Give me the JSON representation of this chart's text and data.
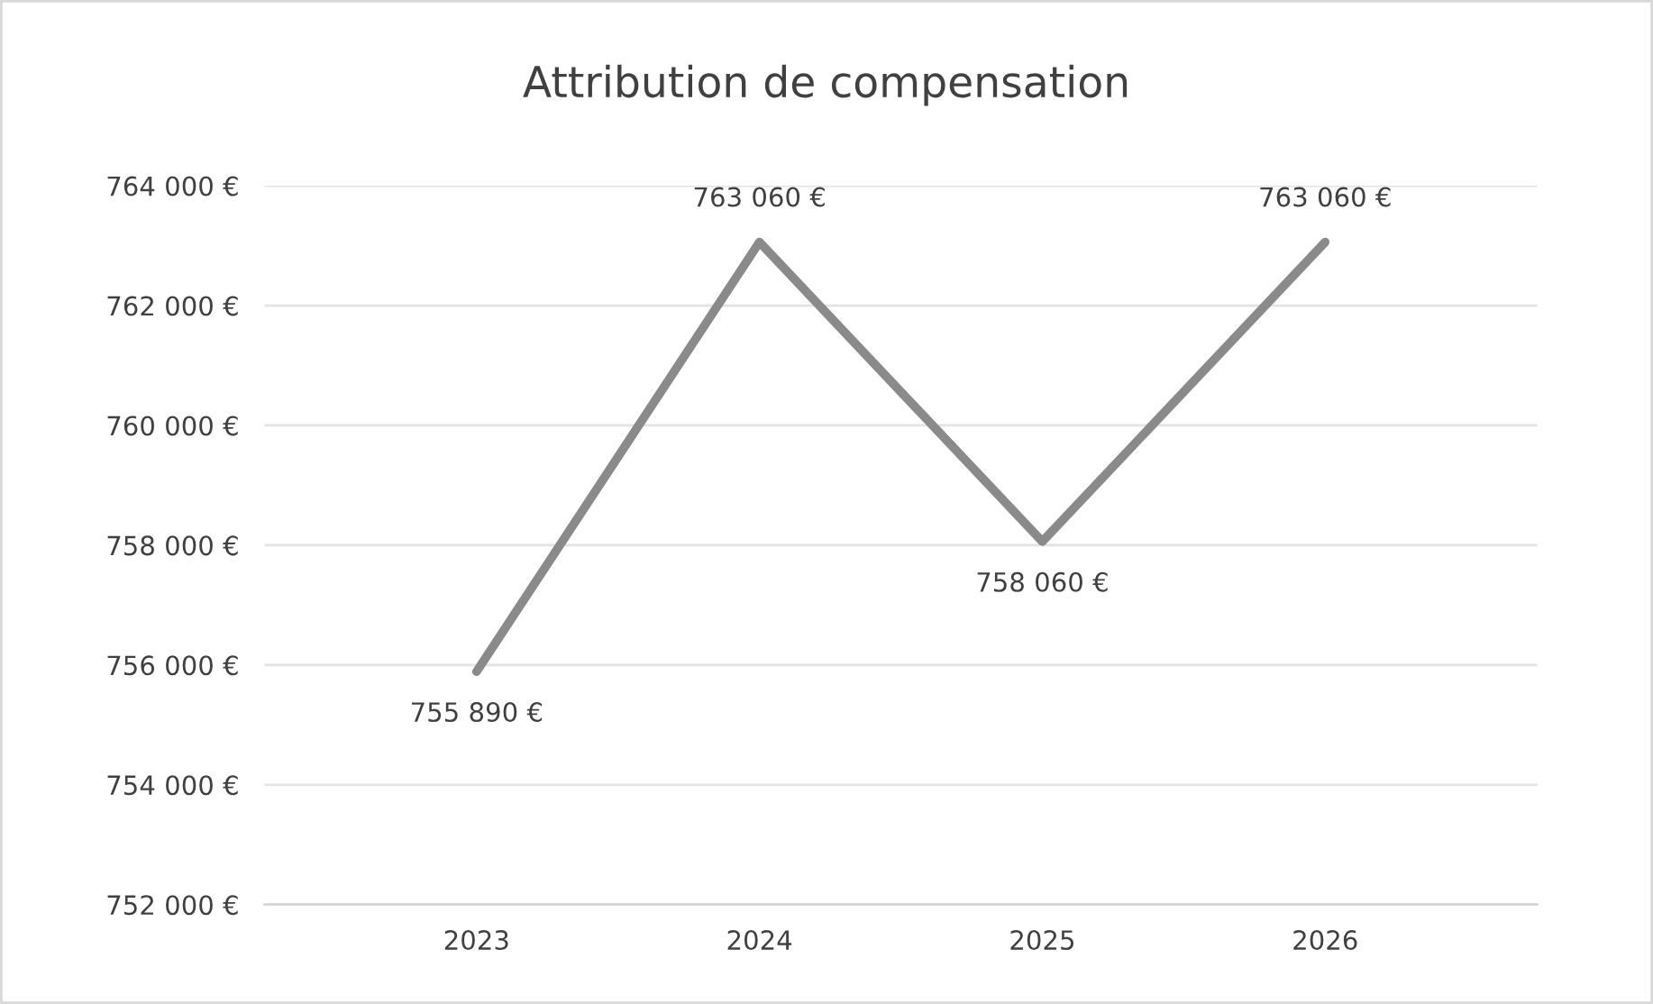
{
  "chart_data": {
    "type": "line",
    "title": "Attribution de compensation",
    "categories": [
      "2023",
      "2024",
      "2025",
      "2026"
    ],
    "series": [
      {
        "color": "#8a8a8a",
        "values": [
          755890,
          763060,
          758060,
          763060
        ],
        "value_labels": [
          "755 890 €",
          "763 060 €",
          "758 060 €",
          "763 060 €"
        ]
      }
    ],
    "ylim": [
      752000,
      764000
    ],
    "yticks": [
      {
        "value": 752000,
        "label": "752 000 €"
      },
      {
        "value": 754000,
        "label": "754 000 €"
      },
      {
        "value": 756000,
        "label": "756 000 €"
      },
      {
        "value": 758000,
        "label": "758 000 €"
      },
      {
        "value": 760000,
        "label": "760 000 €"
      },
      {
        "value": 762000,
        "label": "762 000 €"
      },
      {
        "value": 764000,
        "label": "764 000 €"
      }
    ],
    "grid": "y",
    "marker": "none",
    "line_style": "solid",
    "legend": false
  }
}
